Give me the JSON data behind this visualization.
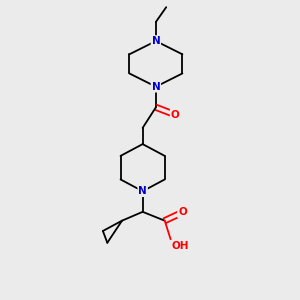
{
  "bg_color": "#ebebeb",
  "bond_color": "#000000",
  "N_color": "#0000cc",
  "O_color": "#ff0000",
  "font_size_atom": 7.5,
  "bond_width": 1.3,
  "figsize": [
    3.0,
    3.0
  ],
  "dpi": 100,
  "xlim": [
    0,
    10
  ],
  "ylim": [
    0,
    10
  ]
}
